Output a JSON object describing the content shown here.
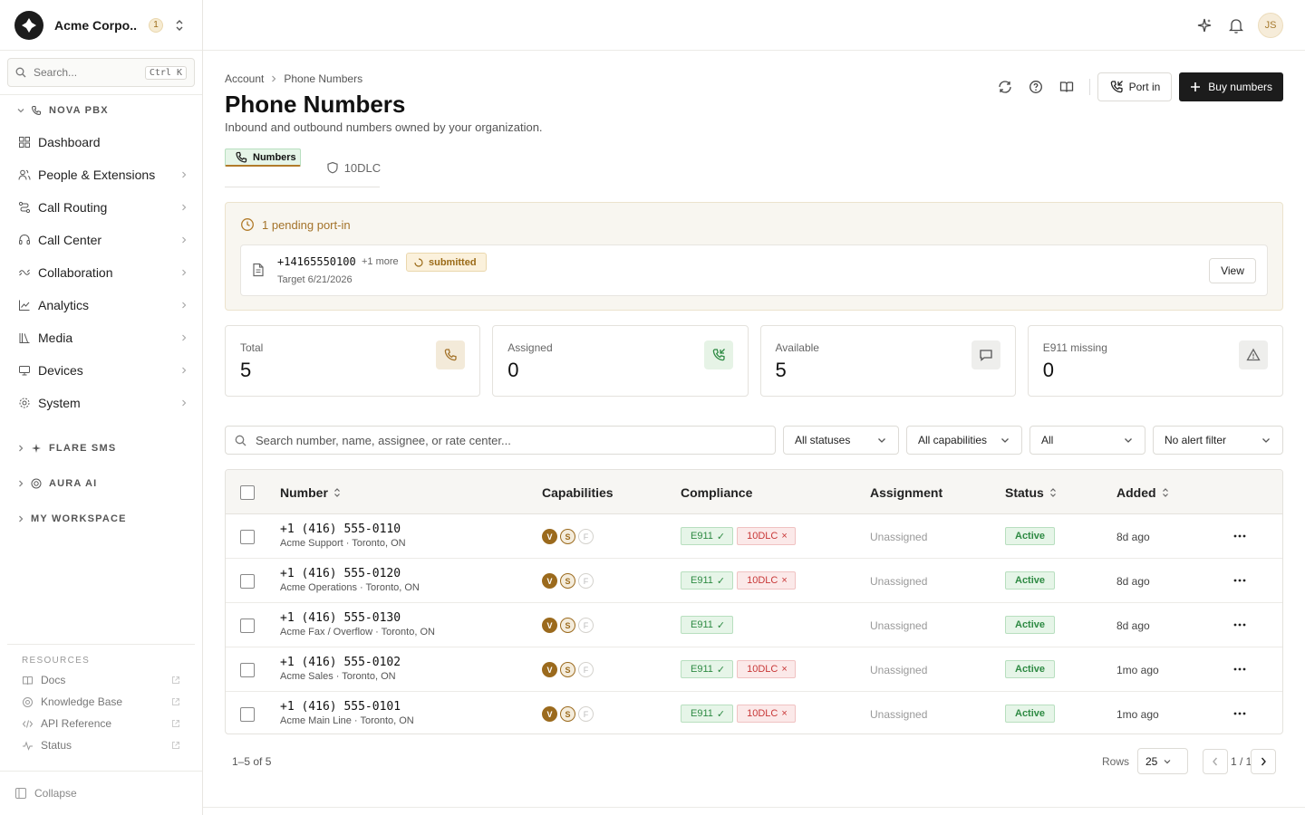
{
  "org": {
    "name": "Acme Corpo...",
    "badge": "1"
  },
  "search": {
    "placeholder": "Search...",
    "shortcut": "Ctrl K"
  },
  "sidebar": {
    "pbx_title": "NOVA PBX",
    "items": [
      {
        "label": "Dashboard",
        "icon": "grid-icon"
      },
      {
        "label": "People & Extensions",
        "icon": "people-icon"
      },
      {
        "label": "Call Routing",
        "icon": "routing-icon"
      },
      {
        "label": "Call Center",
        "icon": "headset-icon"
      },
      {
        "label": "Collaboration",
        "icon": "collaboration-icon"
      },
      {
        "label": "Analytics",
        "icon": "chart-icon"
      },
      {
        "label": "Media",
        "icon": "library-icon"
      },
      {
        "label": "Devices",
        "icon": "devices-icon"
      },
      {
        "label": "System",
        "icon": "gear-icon"
      }
    ],
    "sections": [
      {
        "label": "FLARE SMS"
      },
      {
        "label": "AURA AI"
      },
      {
        "label": "MY WORKSPACE"
      }
    ],
    "resources_title": "RESOURCES",
    "resources": [
      {
        "label": "Docs"
      },
      {
        "label": "Knowledge Base"
      },
      {
        "label": "API Reference"
      },
      {
        "label": "Status"
      }
    ],
    "collapse_label": "Collapse"
  },
  "topbar": {
    "avatar": "JS"
  },
  "breadcrumb": {
    "root": "Account",
    "current": "Phone Numbers"
  },
  "page": {
    "title": "Phone Numbers",
    "subtitle": "Inbound and outbound numbers owned by your organization."
  },
  "actions": {
    "port_in": "Port in",
    "buy": "Buy numbers"
  },
  "tabs": [
    {
      "label": "Numbers"
    },
    {
      "label": "10DLC"
    }
  ],
  "pending": {
    "title": "1 pending port-in",
    "number": "+14165550100",
    "more": "+1 more",
    "status": "submitted",
    "target": "Target 6/21/2026",
    "view": "View"
  },
  "stats": [
    {
      "label": "Total",
      "value": "5"
    },
    {
      "label": "Assigned",
      "value": "0"
    },
    {
      "label": "Available",
      "value": "5"
    },
    {
      "label": "E911 missing",
      "value": "0"
    }
  ],
  "filters": {
    "search_placeholder": "Search number, name, assignee, or rate center...",
    "status": "All statuses",
    "capabilities": "All capabilities",
    "type": "All",
    "alert": "No alert filter"
  },
  "table": {
    "headers": {
      "number": "Number",
      "capabilities": "Capabilities",
      "compliance": "Compliance",
      "assignment": "Assignment",
      "status": "Status",
      "added": "Added"
    },
    "rows": [
      {
        "number": "+1 (416) 555-0110",
        "name": "Acme Support · Toronto, ON",
        "e911": "E911",
        "tendlc": "10DLC",
        "assignment": "Unassigned",
        "status": "Active",
        "added": "8d ago"
      },
      {
        "number": "+1 (416) 555-0120",
        "name": "Acme Operations · Toronto, ON",
        "e911": "E911",
        "tendlc": "10DLC",
        "assignment": "Unassigned",
        "status": "Active",
        "added": "8d ago"
      },
      {
        "number": "+1 (416) 555-0130",
        "name": "Acme Fax / Overflow · Toronto, ON",
        "e911": "E911",
        "tendlc": "",
        "assignment": "Unassigned",
        "status": "Active",
        "added": "8d ago"
      },
      {
        "number": "+1 (416) 555-0102",
        "name": "Acme Sales · Toronto, ON",
        "e911": "E911",
        "tendlc": "10DLC",
        "assignment": "Unassigned",
        "status": "Active",
        "added": "1mo ago"
      },
      {
        "number": "+1 (416) 555-0101",
        "name": "Acme Main Line · Toronto, ON",
        "e911": "E911",
        "tendlc": "10DLC",
        "assignment": "Unassigned",
        "status": "Active",
        "added": "1mo ago"
      }
    ],
    "caps": {
      "v": "V",
      "s": "S",
      "f": "F"
    }
  },
  "pager": {
    "range": "1–5 of 5",
    "rows_label": "Rows",
    "rows_value": "25",
    "page": "1 / 1"
  },
  "colors": {
    "accent": "#b17b2a",
    "dark": "#1c1c1c",
    "ok": "#2e8a43",
    "bad": "#c83737"
  }
}
